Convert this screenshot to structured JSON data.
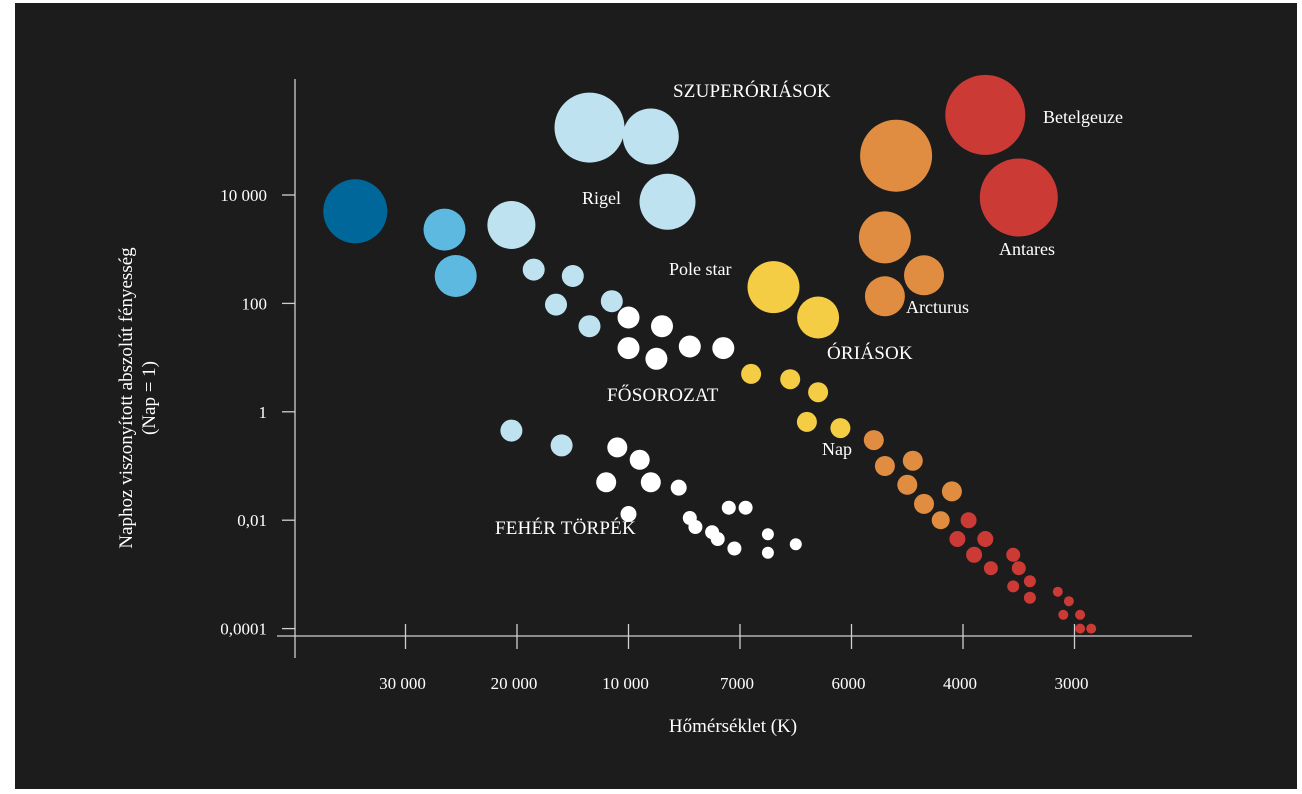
{
  "chart_data": {
    "type": "scatter",
    "title": "",
    "xlabel": "Hőmérséklet (K)",
    "ylabel": "Naphoz viszonyított abszolút fényesség",
    "ylabel_sub": "(Nap = 1)",
    "x_ticks": [
      "30 000",
      "20 000",
      "10 000",
      "7000",
      "6000",
      "4000",
      "3000"
    ],
    "y_ticks": [
      "10 000",
      "100",
      "1",
      "0,01",
      "0,0001"
    ],
    "y_tick_values": [
      10000,
      100,
      1,
      0.01,
      0.0001
    ],
    "y_scale": "log",
    "grid": false,
    "region_labels": [
      "SZUPERÓRIÁSOK",
      "ÓRIÁSOK",
      "FŐSOROZAT",
      "FEHÉR TÖRPÉK"
    ],
    "star_labels": [
      "Betelgeuze",
      "Antares",
      "Rigel",
      "Pole star",
      "Arcturus",
      "Nap"
    ],
    "colors": {
      "background": "#1c1c1c",
      "blue_hot": "#00679a",
      "blue": "#5db9df",
      "light_blue": "#bfe2f0",
      "white": "#ffffff",
      "yellow": "#f4cd45",
      "orange": "#e08d42",
      "red_orange": "#d9642e",
      "red": "#cc3a36"
    },
    "stars": [
      {
        "tick": 0.55,
        "lum": 5000,
        "r": 32,
        "color": "blue_hot"
      },
      {
        "tick": 1.35,
        "lum": 2300,
        "r": 21,
        "color": "blue"
      },
      {
        "tick": 1.45,
        "lum": 320,
        "r": 21,
        "color": "blue"
      },
      {
        "tick": 1.95,
        "lum": 2800,
        "r": 24,
        "color": "light_blue"
      },
      {
        "tick": 2.15,
        "lum": 420,
        "r": 11,
        "color": "light_blue"
      },
      {
        "tick": 2.5,
        "lum": 320,
        "r": 11,
        "color": "light_blue"
      },
      {
        "tick": 2.35,
        "lum": 95,
        "r": 11,
        "color": "light_blue"
      },
      {
        "tick": 2.65,
        "lum": 38,
        "r": 11,
        "color": "light_blue"
      },
      {
        "tick": 2.85,
        "lum": 110,
        "r": 11,
        "color": "light_blue"
      },
      {
        "tick": 2.65,
        "lum": 175000,
        "r": 35,
        "color": "light_blue",
        "name": "supergiant"
      },
      {
        "tick": 3.2,
        "lum": 120000,
        "r": 28,
        "color": "light_blue"
      },
      {
        "tick": 3.35,
        "lum": 7500,
        "r": 28,
        "color": "light_blue",
        "name": "Rigel"
      },
      {
        "tick": 3.0,
        "lum": 55,
        "r": 11,
        "color": "white"
      },
      {
        "tick": 3.3,
        "lum": 38,
        "r": 11,
        "color": "white"
      },
      {
        "tick": 3.0,
        "lum": 15,
        "r": 11,
        "color": "white"
      },
      {
        "tick": 3.25,
        "lum": 9.5,
        "r": 11,
        "color": "white"
      },
      {
        "tick": 3.55,
        "lum": 16,
        "r": 11,
        "color": "white"
      },
      {
        "tick": 3.85,
        "lum": 15,
        "r": 11,
        "color": "white"
      },
      {
        "tick": 4.1,
        "lum": 5,
        "r": 10,
        "color": "yellow"
      },
      {
        "tick": 4.45,
        "lum": 4,
        "r": 10,
        "color": "yellow"
      },
      {
        "tick": 4.7,
        "lum": 2.3,
        "r": 10,
        "color": "yellow"
      },
      {
        "tick": 4.6,
        "lum": 0.65,
        "r": 10,
        "color": "yellow"
      },
      {
        "tick": 4.9,
        "lum": 0.5,
        "r": 10,
        "color": "yellow"
      },
      {
        "tick": 4.3,
        "lum": 200,
        "r": 26,
        "color": "yellow",
        "name": "Pole star"
      },
      {
        "tick": 4.7,
        "lum": 55,
        "r": 21,
        "color": "yellow"
      },
      {
        "tick": 5.2,
        "lum": 0.3,
        "r": 10,
        "color": "orange"
      },
      {
        "tick": 5.3,
        "lum": 0.1,
        "r": 10,
        "color": "orange"
      },
      {
        "tick": 5.55,
        "lum": 0.125,
        "r": 10,
        "color": "orange"
      },
      {
        "tick": 5.5,
        "lum": 0.045,
        "r": 10,
        "color": "orange"
      },
      {
        "tick": 5.65,
        "lum": 0.02,
        "r": 10,
        "color": "orange"
      },
      {
        "tick": 5.9,
        "lum": 0.034,
        "r": 10,
        "color": "orange"
      },
      {
        "tick": 5.8,
        "lum": 0.01,
        "r": 9,
        "color": "orange"
      },
      {
        "tick": 5.3,
        "lum": 1650,
        "r": 26,
        "color": "orange"
      },
      {
        "tick": 5.3,
        "lum": 135,
        "r": 20,
        "color": "orange"
      },
      {
        "tick": 5.65,
        "lum": 330,
        "r": 20,
        "color": "orange",
        "name": "Arcturus"
      },
      {
        "tick": 5.4,
        "lum": 53000,
        "r": 36,
        "color": "orange"
      },
      {
        "tick": 6.05,
        "lum": 0.01,
        "r": 8,
        "color": "red"
      },
      {
        "tick": 5.95,
        "lum": 0.0045,
        "r": 8,
        "color": "red"
      },
      {
        "tick": 6.1,
        "lum": 0.0023,
        "r": 8,
        "color": "red"
      },
      {
        "tick": 6.2,
        "lum": 0.0045,
        "r": 8,
        "color": "red"
      },
      {
        "tick": 6.25,
        "lum": 0.0013,
        "r": 7,
        "color": "red"
      },
      {
        "tick": 6.45,
        "lum": 0.0023,
        "r": 7,
        "color": "red"
      },
      {
        "tick": 6.5,
        "lum": 0.0013,
        "r": 7,
        "color": "red"
      },
      {
        "tick": 6.45,
        "lum": 0.0006,
        "r": 6,
        "color": "red"
      },
      {
        "tick": 6.6,
        "lum": 0.00075,
        "r": 6,
        "color": "red"
      },
      {
        "tick": 6.6,
        "lum": 0.00037,
        "r": 6,
        "color": "red"
      },
      {
        "tick": 6.85,
        "lum": 0.00048,
        "r": 5,
        "color": "red"
      },
      {
        "tick": 6.95,
        "lum": 0.00032,
        "r": 5,
        "color": "red"
      },
      {
        "tick": 6.9,
        "lum": 0.00018,
        "r": 5,
        "color": "red"
      },
      {
        "tick": 7.05,
        "lum": 0.00018,
        "r": 5,
        "color": "red"
      },
      {
        "tick": 7.05,
        "lum": 0.0001,
        "r": 5,
        "color": "red"
      },
      {
        "tick": 7.15,
        "lum": 0.0001,
        "r": 5,
        "color": "red"
      },
      {
        "tick": 6.2,
        "lum": 300000,
        "r": 40,
        "color": "red",
        "name": "Betelgeuze"
      },
      {
        "tick": 6.5,
        "lum": 9000,
        "r": 39,
        "color": "red",
        "name": "Antares"
      },
      {
        "tick": 1.95,
        "lum": 0.45,
        "r": 11,
        "color": "light_blue"
      },
      {
        "tick": 2.4,
        "lum": 0.24,
        "r": 11,
        "color": "light_blue"
      },
      {
        "tick": 2.8,
        "lum": 0.05,
        "r": 10,
        "color": "white"
      },
      {
        "tick": 3.0,
        "lum": 0.013,
        "r": 8,
        "color": "white"
      },
      {
        "tick": 3.55,
        "lum": 0.011,
        "r": 7,
        "color": "white"
      },
      {
        "tick": 3.75,
        "lum": 0.006,
        "r": 7,
        "color": "white"
      },
      {
        "tick": 3.95,
        "lum": 0.003,
        "r": 7,
        "color": "white"
      },
      {
        "tick": 3.9,
        "lum": 0.017,
        "r": 7,
        "color": "white"
      },
      {
        "tick": 4.05,
        "lum": 0.017,
        "r": 7,
        "color": "white"
      },
      {
        "tick": 3.8,
        "lum": 0.0045,
        "r": 7,
        "color": "white"
      },
      {
        "tick": 4.5,
        "lum": 0.0036,
        "r": 6,
        "color": "white"
      },
      {
        "tick": 4.25,
        "lum": 0.0055,
        "r": 6,
        "color": "white"
      },
      {
        "tick": 3.45,
        "lum": 0.04,
        "r": 8,
        "color": "white"
      },
      {
        "tick": 3.6,
        "lum": 0.0075,
        "r": 7,
        "color": "white"
      },
      {
        "tick": 4.25,
        "lum": 0.0025,
        "r": 6,
        "color": "white"
      },
      {
        "tick": 2.9,
        "lum": 0.22,
        "r": 10,
        "color": "white"
      },
      {
        "tick": 3.1,
        "lum": 0.13,
        "r": 10,
        "color": "white"
      },
      {
        "tick": 3.2,
        "lum": 0.05,
        "r": 10,
        "color": "white"
      }
    ]
  }
}
